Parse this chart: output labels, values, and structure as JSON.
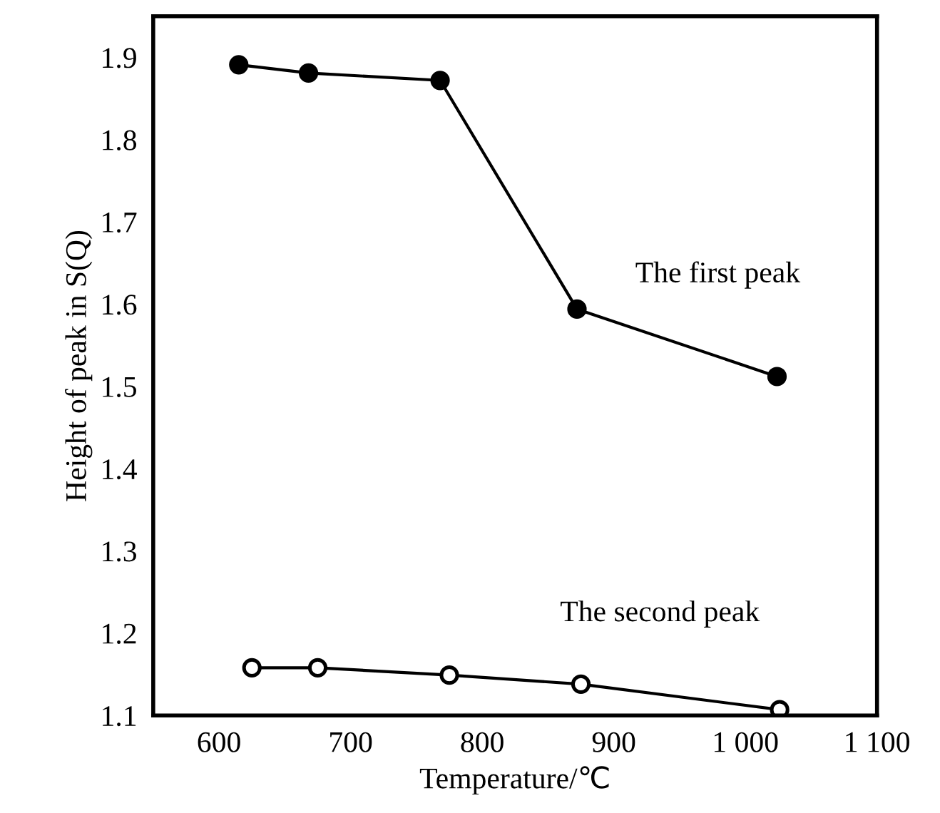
{
  "chart_data": {
    "type": "line",
    "xlabel": "Temperature/℃",
    "ylabel": "Height of peak in S(Q)",
    "xlim": [
      550,
      1100
    ],
    "ylim": [
      1.1,
      1.95
    ],
    "xticks": [
      600,
      700,
      800,
      900,
      {
        "value": 1000,
        "label": "1 000"
      },
      {
        "value": 1100,
        "label": "1 100"
      }
    ],
    "yticks": [
      1.1,
      1.2,
      1.3,
      1.4,
      1.5,
      1.6,
      1.7,
      1.8,
      1.9
    ],
    "marker": "circle",
    "line_style": "solid",
    "grid": false,
    "legend": false,
    "series": [
      {
        "name": "The first peak",
        "color": "#000000",
        "x": [
          615,
          668,
          768,
          872,
          1024
        ],
        "values": [
          1.891,
          1.881,
          1.872,
          1.594,
          1.512
        ]
      },
      {
        "name": "The second peak",
        "color": "#000000",
        "x": [
          625,
          675,
          775,
          875,
          1026
        ],
        "values": [
          1.158,
          1.158,
          1.149,
          1.138,
          1.107
        ]
      }
    ]
  }
}
